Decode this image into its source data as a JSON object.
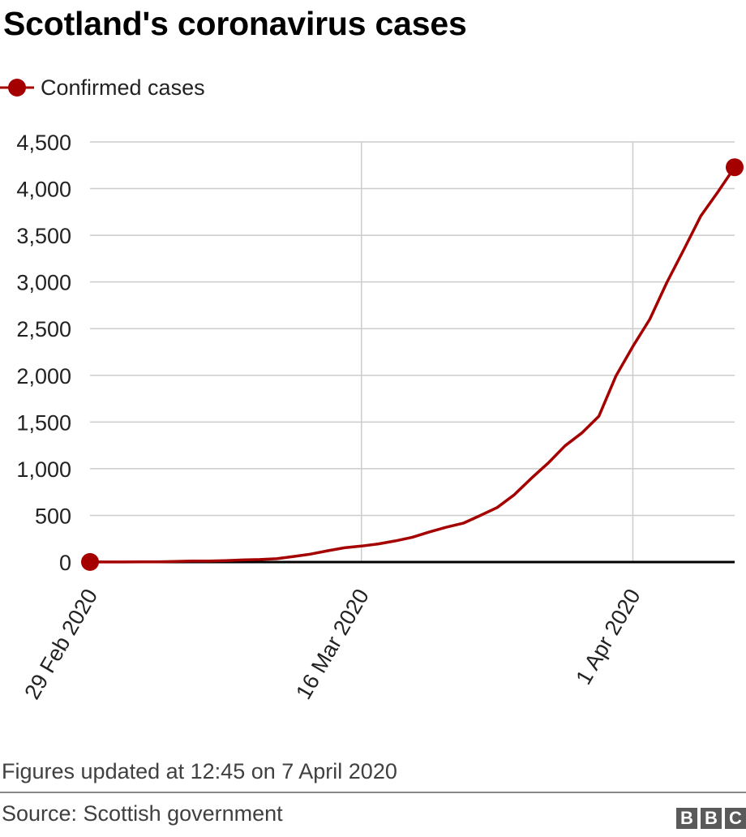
{
  "header": {
    "title": "Scotland's coronavirus cases"
  },
  "colors": {
    "series": "#a50000",
    "zero_line": "#000000",
    "grid": "#cccccc"
  },
  "chart_data": {
    "type": "line",
    "title": "Scotland's coronavirus cases",
    "xlabel": "",
    "ylabel": "",
    "ylim": [
      0,
      4500
    ],
    "yticks": [
      0,
      500,
      1000,
      1500,
      2000,
      2500,
      3000,
      3500,
      4000,
      4500
    ],
    "ytick_labels": [
      "0",
      "500",
      "1,000",
      "1,500",
      "2,000",
      "2,500",
      "3,000",
      "3,500",
      "4,000",
      "4,500"
    ],
    "xlim": [
      "2020-02-29",
      "2020-04-07"
    ],
    "xticks": [
      "2020-02-29",
      "2020-03-16",
      "2020-04-01"
    ],
    "xtick_labels": [
      "29 Feb 2020",
      "16 Mar 2020",
      "1 Apr 2020"
    ],
    "grid": true,
    "legend_position": "top-left",
    "series": [
      {
        "name": "Confirmed cases",
        "x": [
          "2020-02-29",
          "2020-03-01",
          "2020-03-02",
          "2020-03-03",
          "2020-03-04",
          "2020-03-05",
          "2020-03-06",
          "2020-03-07",
          "2020-03-08",
          "2020-03-09",
          "2020-03-10",
          "2020-03-11",
          "2020-03-12",
          "2020-03-13",
          "2020-03-14",
          "2020-03-15",
          "2020-03-16",
          "2020-03-17",
          "2020-03-18",
          "2020-03-19",
          "2020-03-20",
          "2020-03-21",
          "2020-03-22",
          "2020-03-23",
          "2020-03-24",
          "2020-03-25",
          "2020-03-26",
          "2020-03-27",
          "2020-03-28",
          "2020-03-29",
          "2020-03-30",
          "2020-03-31",
          "2020-04-01",
          "2020-04-02",
          "2020-04-03",
          "2020-04-04",
          "2020-04-05",
          "2020-04-06",
          "2020-04-07"
        ],
        "values": [
          1,
          1,
          1,
          3,
          3,
          6,
          11,
          11,
          16,
          23,
          27,
          36,
          60,
          85,
          121,
          153,
          171,
          195,
          227,
          266,
          322,
          373,
          416,
          499,
          584,
          719,
          894,
          1059,
          1245,
          1384,
          1563,
          1993,
          2310,
          2602,
          2993,
          3345,
          3706,
          3961,
          4229
        ],
        "marker_ends": true
      }
    ]
  },
  "legend": {
    "label": "Confirmed cases"
  },
  "footer": {
    "note": "Figures updated at 12:45 on 7 April 2020",
    "source": "Source: Scottish government",
    "logo_letters": [
      "B",
      "B",
      "C"
    ]
  }
}
